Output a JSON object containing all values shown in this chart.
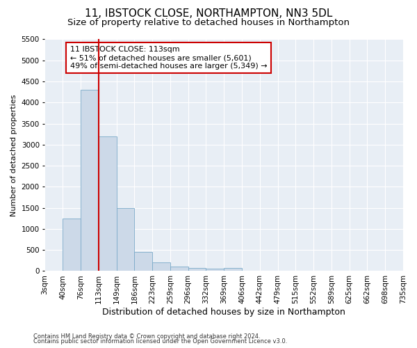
{
  "title": "11, IBSTOCK CLOSE, NORTHAMPTON, NN3 5DL",
  "subtitle": "Size of property relative to detached houses in Northampton",
  "xlabel": "Distribution of detached houses by size in Northampton",
  "ylabel": "Number of detached properties",
  "footnote1": "Contains HM Land Registry data © Crown copyright and database right 2024.",
  "footnote2": "Contains public sector information licensed under the Open Government Licence v3.0.",
  "bar_values": [
    0,
    1250,
    4300,
    3200,
    1500,
    450,
    200,
    100,
    75,
    50,
    75,
    0,
    0,
    0,
    0,
    0,
    0,
    0,
    0,
    0
  ],
  "bar_labels": [
    "3sqm",
    "40sqm",
    "76sqm",
    "113sqm",
    "149sqm",
    "186sqm",
    "223sqm",
    "259sqm",
    "296sqm",
    "332sqm",
    "369sqm",
    "406sqm",
    "442sqm",
    "479sqm",
    "515sqm",
    "552sqm",
    "589sqm",
    "625sqm",
    "662sqm",
    "698sqm",
    "735sqm"
  ],
  "bar_color": "#ccd9e8",
  "bar_edge_color": "#7aaac8",
  "vline_x_index": 3,
  "vline_color": "#cc0000",
  "annotation_text": "11 IBSTOCK CLOSE: 113sqm\n← 51% of detached houses are smaller (5,601)\n49% of semi-detached houses are larger (5,349) →",
  "annotation_box_facecolor": "#ffffff",
  "annotation_box_edgecolor": "#cc0000",
  "ylim": [
    0,
    5500
  ],
  "yticks": [
    0,
    500,
    1000,
    1500,
    2000,
    2500,
    3000,
    3500,
    4000,
    4500,
    5000,
    5500
  ],
  "plot_bg_color": "#e8eef5",
  "grid_color": "#ffffff",
  "title_fontsize": 11,
  "subtitle_fontsize": 9.5,
  "xlabel_fontsize": 9,
  "ylabel_fontsize": 8,
  "tick_fontsize": 7.5,
  "footnote_fontsize": 6
}
